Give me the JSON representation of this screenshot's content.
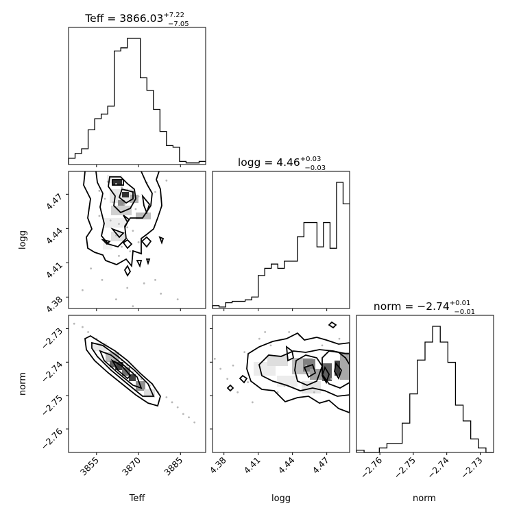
{
  "chart_data": {
    "type": "corner",
    "parameters": [
      {
        "name": "Teff",
        "ticks": [
          "3855",
          "3870",
          "3885"
        ],
        "tick_values": [
          3855,
          3870,
          3885
        ],
        "range": [
          3845,
          3894
        ]
      },
      {
        "name": "logg",
        "ticks": [
          "4.38",
          "4.41",
          "4.44",
          "4.47"
        ],
        "tick_values": [
          4.38,
          4.41,
          4.44,
          4.47
        ],
        "range": [
          4.37,
          4.49
        ]
      },
      {
        "name": "norm",
        "ticks": [
          "−2.76",
          "−2.75",
          "−2.74",
          "−2.73"
        ],
        "tick_values": [
          -2.76,
          -2.75,
          -2.74,
          -2.73
        ],
        "range": [
          -2.767,
          -2.726
        ]
      }
    ],
    "titles": [
      {
        "text": "Teff = 3866.03",
        "sup": "+7.22",
        "sub": "−7.05"
      },
      {
        "text": "logg = 4.46",
        "sup": "+0.03",
        "sub": "−0.03"
      },
      {
        "text": "norm = −2.74",
        "sup": "+0.01",
        "sub": "−0.01"
      }
    ],
    "histograms": [
      {
        "param": "Teff",
        "counts": [
          4,
          7,
          10,
          22,
          29,
          32,
          37,
          72,
          74,
          80,
          80,
          55,
          47,
          35,
          21,
          12,
          11,
          2,
          1,
          1,
          2
        ]
      },
      {
        "param": "logg",
        "counts": [
          2,
          1,
          4,
          5,
          5,
          6,
          8,
          23,
          28,
          31,
          28,
          33,
          33,
          50,
          60,
          60,
          43,
          60,
          42,
          88,
          73
        ]
      },
      {
        "param": "norm",
        "counts": [
          1,
          0,
          0,
          2,
          4,
          4,
          13,
          26,
          41,
          49,
          56,
          49,
          40,
          21,
          14,
          6,
          2,
          0
        ]
      }
    ],
    "scatter_samples": [
      {
        "x": "Teff",
        "y": "logg",
        "points": [
          [
            3859,
            4.481
          ],
          [
            3862,
            4.479
          ],
          [
            3864,
            4.476
          ],
          [
            3866,
            4.474
          ],
          [
            3868,
            4.472
          ],
          [
            3870,
            4.468
          ],
          [
            3858,
            4.466
          ],
          [
            3861,
            4.463
          ],
          [
            3865,
            4.461
          ],
          [
            3869,
            4.457
          ],
          [
            3871,
            4.453
          ],
          [
            3856,
            4.451
          ],
          [
            3860,
            4.447
          ],
          [
            3863,
            4.444
          ],
          [
            3866,
            4.441
          ],
          [
            3868,
            4.438
          ],
          [
            3862,
            4.434
          ],
          [
            3866,
            4.431
          ],
          [
            3870,
            4.428
          ],
          [
            3864,
            4.424
          ],
          [
            3867,
            4.42
          ],
          [
            3863,
            4.416
          ],
          [
            3871,
            4.418
          ],
          [
            3853,
            4.405
          ],
          [
            3857,
            4.395
          ],
          [
            3866,
            4.388
          ],
          [
            3872,
            4.392
          ],
          [
            3850,
            4.386
          ],
          [
            3878,
            4.383
          ],
          [
            3862,
            4.378
          ],
          [
            3884,
            4.378
          ],
          [
            3868,
            4.372
          ],
          [
            3876,
            4.395
          ],
          [
            3856,
            4.473
          ],
          [
            3873,
            4.48
          ],
          [
            3858,
            4.429
          ],
          [
            3876,
            4.472
          ],
          [
            3880,
            4.482
          ]
        ]
      },
      {
        "x": "Teff",
        "y": "norm",
        "points": [
          [
            3847,
            -2.7285
          ],
          [
            3850,
            -2.7295
          ],
          [
            3852,
            -2.731
          ],
          [
            3855,
            -2.733
          ],
          [
            3858,
            -2.735
          ],
          [
            3861,
            -2.7375
          ],
          [
            3864,
            -2.7395
          ],
          [
            3866,
            -2.741
          ],
          [
            3868,
            -2.743
          ],
          [
            3871,
            -2.745
          ],
          [
            3874,
            -2.747
          ],
          [
            3877,
            -2.749
          ],
          [
            3880,
            -2.7505
          ],
          [
            3882,
            -2.752
          ],
          [
            3884,
            -2.7535
          ],
          [
            3886,
            -2.7555
          ],
          [
            3888,
            -2.7565
          ],
          [
            3890,
            -2.758
          ]
        ]
      },
      {
        "x": "logg",
        "y": "norm",
        "points": [
          [
            4.372,
            -2.739
          ],
          [
            4.377,
            -2.742
          ],
          [
            4.383,
            -2.745
          ],
          [
            4.388,
            -2.741
          ],
          [
            4.392,
            -2.749
          ],
          [
            4.398,
            -2.737
          ],
          [
            4.401,
            -2.746
          ],
          [
            4.405,
            -2.752
          ],
          [
            4.411,
            -2.733
          ],
          [
            4.416,
            -2.731
          ],
          [
            4.421,
            -2.735
          ],
          [
            4.427,
            -2.749
          ],
          [
            4.433,
            -2.747
          ],
          [
            4.437,
            -2.731
          ],
          [
            4.446,
            -2.732
          ],
          [
            4.452,
            -2.741
          ],
          [
            4.459,
            -2.749
          ],
          [
            4.466,
            -2.735
          ],
          [
            4.474,
            -2.745
          ],
          [
            4.481,
            -2.733
          ],
          [
            4.486,
            -2.738
          ]
        ]
      }
    ]
  }
}
